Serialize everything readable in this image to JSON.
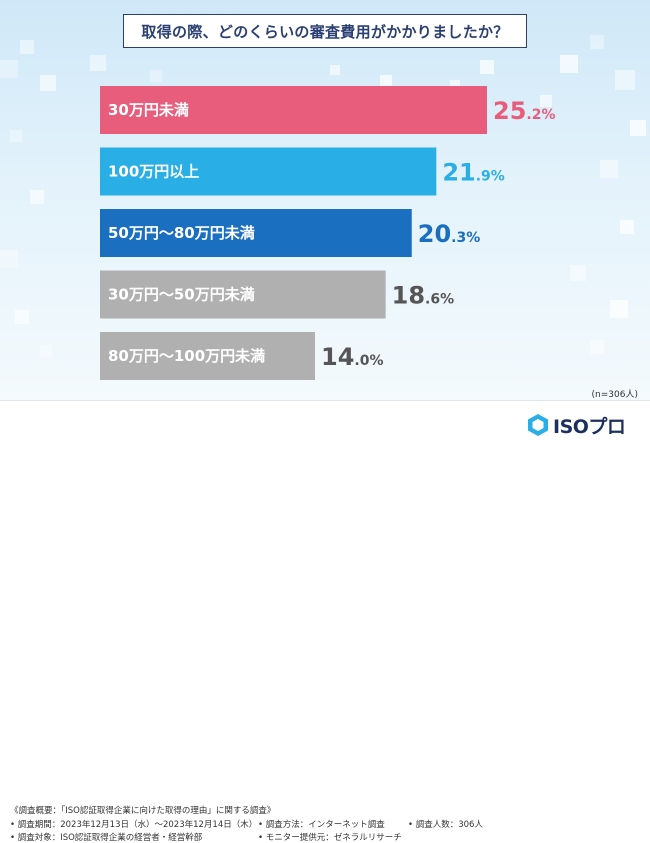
{
  "title": "取得の際、どのくらいの審査費用がかかりましたか？",
  "chart_data": {
    "type": "bar",
    "orientation": "horizontal",
    "title": "取得の際、どのくらいの審査費用がかかりましたか？",
    "unit": "%",
    "categories": [
      "30万円未満",
      "100万円以上",
      "50万円〜80万円未満",
      "30万円〜50万円未満",
      "80万円〜100万円未満"
    ],
    "values": [
      25.2,
      21.9,
      20.3,
      18.6,
      14.0
    ],
    "value_labels": [
      {
        "int": "25",
        "dec": ".2%"
      },
      {
        "int": "21",
        "dec": ".9%"
      },
      {
        "int": "20",
        "dec": ".3%"
      },
      {
        "int": "18",
        "dec": ".6%"
      },
      {
        "int": "14",
        "dec": ".0%"
      }
    ],
    "colors": [
      "#e85d7b",
      "#2aaee6",
      "#1a6fc0",
      "#b0b0b0",
      "#b0b0b0"
    ],
    "value_colors": [
      "#e85d7b",
      "#2aaee6",
      "#1a6fc0",
      "#555555",
      "#555555"
    ]
  },
  "sample_note": "(n=306人)",
  "footer": {
    "overview": "《調査概要：「ISO認証取得企業に向けた取得の理由」に関する調査》",
    "period": "• 調査期間：2023年12月13日（水）〜2023年12月14日（木）",
    "method": "• 調査方法：インターネット調査",
    "count": "• 調査人数：306人",
    "target": "• 調査対象：ISO認証取得企業の経営者・経営幹部",
    "provider": "• モニター提供元：ゼネラルリサーチ"
  },
  "logo": {
    "text": "ISOプロ",
    "icon": "hexagon-logo-icon"
  }
}
